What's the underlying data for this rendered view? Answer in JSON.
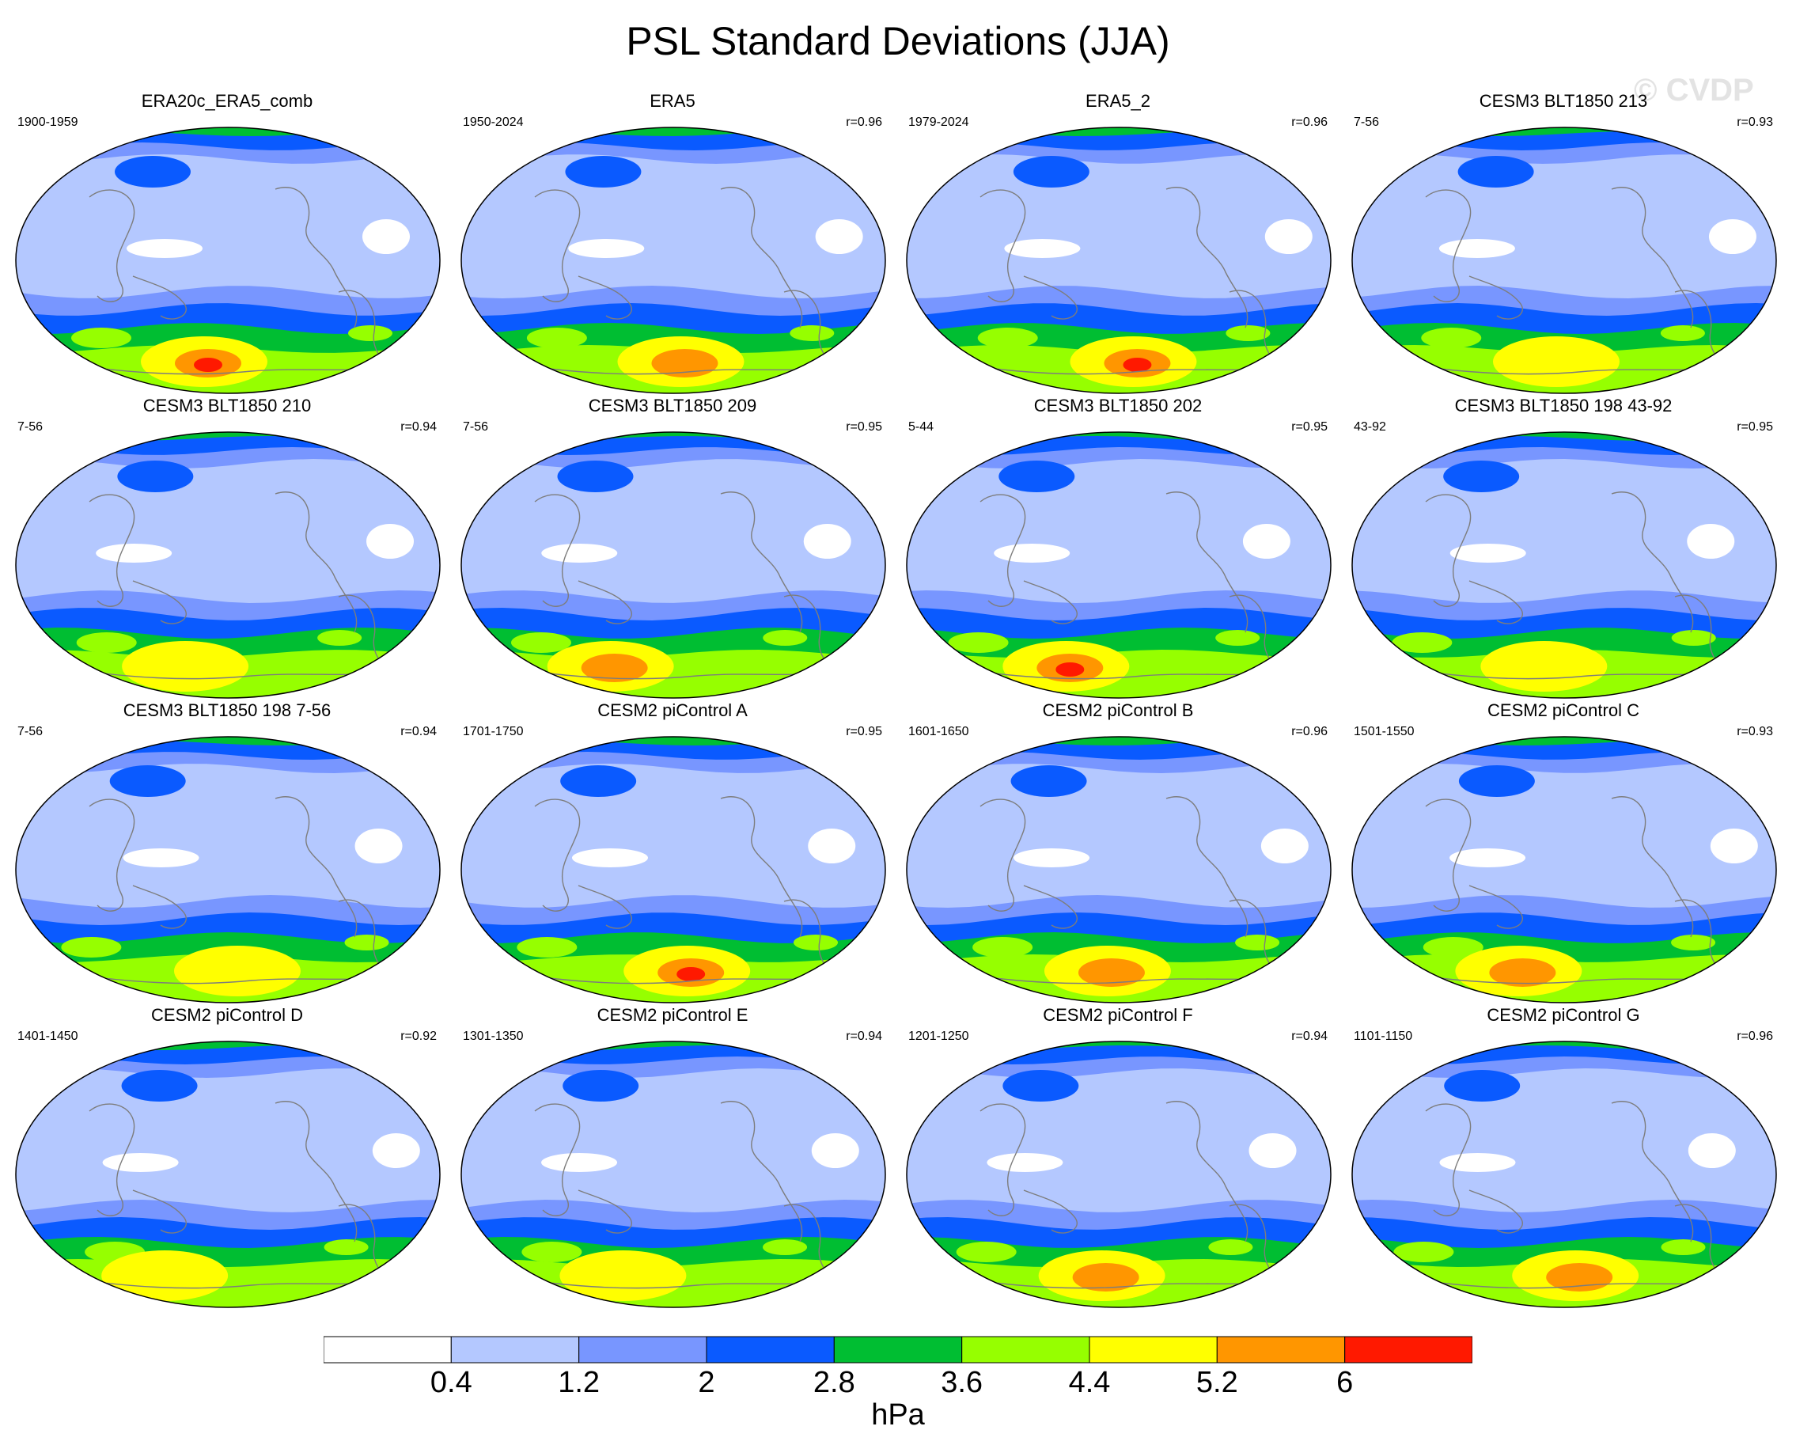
{
  "title": "PSL Standard Deviations (JJA)",
  "watermark": "© CVDP",
  "chart_data": {
    "type": "heatmap",
    "variable": "PSL",
    "season": "JJA",
    "units": "hPa",
    "colorbar": {
      "levels": [
        "0.4",
        "1.2",
        "2",
        "2.8",
        "3.6",
        "4.4",
        "5.2",
        "6"
      ],
      "colors": [
        "#ffffff",
        "#b4c8ff",
        "#7896ff",
        "#0a5aff",
        "#00be32",
        "#96ff00",
        "#ffff00",
        "#ff9600",
        "#ff1900"
      ]
    },
    "panels": [
      {
        "title": "ERA20c_ERA5_comb",
        "years": "1900-1959",
        "r": "",
        "max_level": 8
      },
      {
        "title": "ERA5",
        "years": "1950-2024",
        "r": "r=0.96",
        "max_level": 7
      },
      {
        "title": "ERA5_2",
        "years": "1979-2024",
        "r": "r=0.96",
        "max_level": 8
      },
      {
        "title": "CESM3 BLT1850 213",
        "years": "7-56",
        "r": "r=0.93",
        "max_level": 6
      },
      {
        "title": "CESM3 BLT1850 210",
        "years": "7-56",
        "r": "r=0.94",
        "max_level": 6
      },
      {
        "title": "CESM3 BLT1850 209",
        "years": "7-56",
        "r": "r=0.95",
        "max_level": 7
      },
      {
        "title": "CESM3 BLT1850 202",
        "years": "5-44",
        "r": "r=0.95",
        "max_level": 8
      },
      {
        "title": "CESM3 BLT1850 198 43-92",
        "years": "43-92",
        "r": "r=0.95",
        "max_level": 6
      },
      {
        "title": "CESM3 BLT1850 198 7-56",
        "years": "7-56",
        "r": "r=0.94",
        "max_level": 6
      },
      {
        "title": "CESM2 piControl A",
        "years": "1701-1750",
        "r": "r=0.95",
        "max_level": 8
      },
      {
        "title": "CESM2 piControl B",
        "years": "1601-1650",
        "r": "r=0.96",
        "max_level": 7
      },
      {
        "title": "CESM2 piControl C",
        "years": "1501-1550",
        "r": "r=0.93",
        "max_level": 7
      },
      {
        "title": "CESM2 piControl D",
        "years": "1401-1450",
        "r": "r=0.92",
        "max_level": 6
      },
      {
        "title": "CESM2 piControl E",
        "years": "1301-1350",
        "r": "r=0.94",
        "max_level": 6
      },
      {
        "title": "CESM2 piControl F",
        "years": "1201-1250",
        "r": "r=0.94",
        "max_level": 7
      },
      {
        "title": "CESM2 piControl G",
        "years": "1101-1150",
        "r": "r=0.96",
        "max_level": 7
      }
    ]
  }
}
